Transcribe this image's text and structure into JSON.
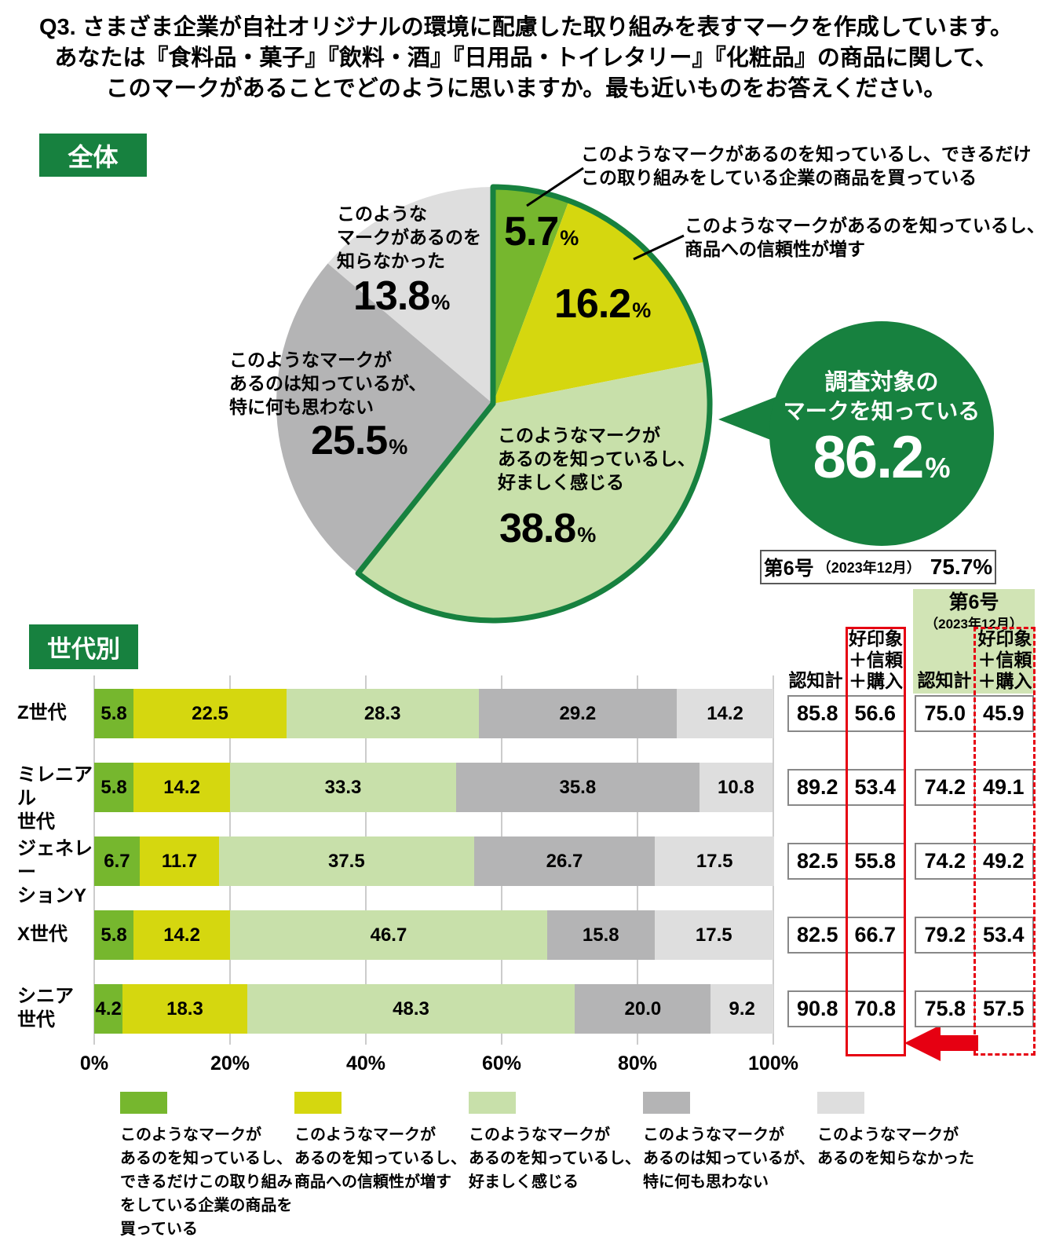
{
  "title": {
    "line1": "Q3. さまざま企業が自社オリジナルの環境に配慮した取り組みを表すマークを作成しています。",
    "line2": "あなたは『食料品・菓子』『飲料・酒』『日用品・トイレタリー』『化粧品』の商品に関して、",
    "line3": "このマークがあることでどのように思いますか。最も近いものをお答えください。"
  },
  "badges": {
    "overall": "全体",
    "by_generation": "世代別"
  },
  "colors": {
    "brand_green": "#17813f",
    "seg_buy": "#76b72e",
    "seg_trust": "#d5d70f",
    "seg_favor": "#c8e0aa",
    "seg_neutral": "#b4b4b5",
    "seg_unknown": "#dedede",
    "table_green_bg": "#d1e4b5",
    "red": "#e60012"
  },
  "pie_annotations": {
    "buy": {
      "text": "このようなマークがあるのを知っているし、できるだけ\nこの取り組みをしている企業の商品を買っている",
      "value": "5.7",
      "unit": "%"
    },
    "trust": {
      "text": "このようなマークがあるのを知っているし、\n商品への信頼性が増す",
      "value": "16.2",
      "unit": "%"
    },
    "favor": {
      "text": "このようなマークが\nあるのを知っているし、\n好ましく感じる",
      "value": "38.8",
      "unit": "%"
    },
    "neutral": {
      "text": "このようなマークが\nあるのは知っているが、\n特に何も思わない",
      "value": "25.5",
      "unit": "%"
    },
    "unknown": {
      "text": "このような\nマークがあるのを\n知らなかった",
      "value": "13.8",
      "unit": "%"
    }
  },
  "bubble": {
    "line1": "調査対象の",
    "line2": "マークを知っている",
    "value": "86.2",
    "unit": "%"
  },
  "previous_overall": {
    "edition": "第6号",
    "date": "（2023年12月）",
    "value": "75.7%"
  },
  "table": {
    "col_recognition": "認知計",
    "col_favorable": "好印象\n＋信頼\n＋購入",
    "prev_edition": "第6号",
    "prev_date": "（2023年12月）",
    "current": {
      "recognition": [
        85.8,
        89.2,
        82.5,
        82.5,
        90.8
      ],
      "favorable": [
        56.6,
        53.4,
        55.8,
        66.7,
        70.8
      ]
    },
    "previous": {
      "recognition": [
        75.0,
        74.2,
        74.2,
        79.2,
        75.8
      ],
      "favorable": [
        45.9,
        49.1,
        49.2,
        53.4,
        57.5
      ]
    }
  },
  "chart_data": [
    {
      "type": "pie",
      "title": "全体",
      "unit": "%",
      "clockwise_from_top": true,
      "segments": [
        {
          "label": "このようなマークがあるのを知っているし、できるだけこの取り組みをしている企業の商品を買っている",
          "value": 5.7,
          "color": "#76b72e"
        },
        {
          "label": "このようなマークがあるのを知っているし、商品への信頼性が増す",
          "value": 16.2,
          "color": "#d5d70f"
        },
        {
          "label": "このようなマークがあるのを知っているし、好ましく感じる",
          "value": 38.8,
          "color": "#c8e0aa"
        },
        {
          "label": "このようなマークがあるのは知っているが、特に何も思わない",
          "value": 25.5,
          "color": "#b4b4b5"
        },
        {
          "label": "このようなマークがあるのを知らなかった",
          "value": 13.8,
          "color": "#dedede"
        }
      ],
      "highlight": {
        "label": "調査対象のマークを知っている",
        "value": 86.2,
        "outlined_segments": [
          0,
          1,
          2
        ]
      },
      "previous": {
        "label": "第6号（2023年12月）",
        "value": 75.7
      }
    },
    {
      "type": "bar",
      "stacked": true,
      "title": "世代別",
      "unit": "%",
      "xlim": [
        0,
        100
      ],
      "x_ticks": [
        "0%",
        "20%",
        "40%",
        "60%",
        "80%",
        "100%"
      ],
      "categories": [
        "Z世代",
        "ミレニアル\n世代",
        "ジェネレー\nションY",
        "X世代",
        "シニア\n世代"
      ],
      "series": [
        {
          "name": "このようなマークがあるのを知っているし、できるだけこの取り組みをしている企業の商品を買っている",
          "color": "#76b72e",
          "values": [
            5.8,
            5.8,
            6.7,
            5.8,
            4.2
          ]
        },
        {
          "name": "このようなマークがあるのを知っているし、商品への信頼性が増す",
          "color": "#d5d70f",
          "values": [
            22.5,
            14.2,
            11.7,
            14.2,
            18.3
          ]
        },
        {
          "name": "このようなマークがあるのを知っているし、好ましく感じる",
          "color": "#c8e0aa",
          "values": [
            28.3,
            33.3,
            37.5,
            46.7,
            48.3
          ]
        },
        {
          "name": "このようなマークがあるのは知っているが、特に何も思わない",
          "color": "#b4b4b5",
          "values": [
            29.2,
            35.8,
            26.7,
            15.8,
            20.0
          ]
        },
        {
          "name": "このようなマークがあるのを知らなかった",
          "color": "#dedede",
          "values": [
            14.2,
            10.8,
            17.5,
            17.5,
            9.2
          ]
        }
      ],
      "legend_position": "bottom",
      "grid": true
    }
  ],
  "legend": {
    "items": [
      {
        "color": "#76b72e",
        "text": "このようなマークが\nあるのを知っているし、\nできるだけこの取り組み\nをしている企業の商品を\n買っている"
      },
      {
        "color": "#d5d70f",
        "text": "このようなマークが\nあるのを知っているし、\n商品への信頼性が増す"
      },
      {
        "color": "#c8e0aa",
        "text": "このようなマークが\nあるのを知っているし、\n好ましく感じる"
      },
      {
        "color": "#b4b4b5",
        "text": "このようなマークが\nあるのは知っているが、\n特に何も思わない"
      },
      {
        "color": "#dedede",
        "text": "このようなマークが\nあるのを知らなかった"
      }
    ]
  }
}
